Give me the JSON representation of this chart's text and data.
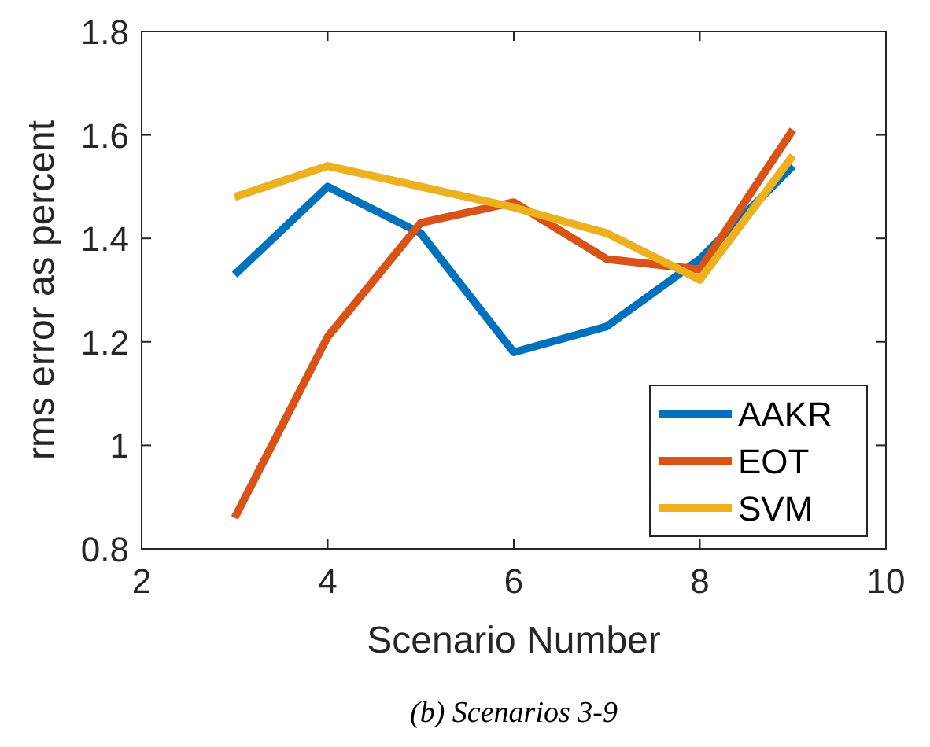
{
  "chart_data": {
    "type": "line",
    "xlabel": "Scenario Number",
    "ylabel": "rms error as percent",
    "annotations": [
      "(b) Scenarios 3-9"
    ],
    "x": [
      3,
      4,
      5,
      6,
      7,
      8,
      9
    ],
    "series": [
      {
        "name": "AAKR",
        "color": "#0072bd",
        "values": [
          1.33,
          1.5,
          1.41,
          1.18,
          1.23,
          1.36,
          1.54
        ]
      },
      {
        "name": "EOT",
        "color": "#d95319",
        "values": [
          0.86,
          1.21,
          1.43,
          1.47,
          1.36,
          1.34,
          1.61
        ]
      },
      {
        "name": "SVM",
        "color": "#edb120",
        "values": [
          1.48,
          1.54,
          1.5,
          1.46,
          1.41,
          1.32,
          1.56
        ]
      }
    ],
    "xlim": [
      2,
      10
    ],
    "xticks": [
      2,
      4,
      6,
      8,
      10
    ],
    "ylim": [
      0.8,
      1.8
    ],
    "yticks": [
      0.8,
      1,
      1.2,
      1.4,
      1.6,
      1.8
    ],
    "grid": false,
    "legend": "bottom right",
    "line_style": "solid",
    "marker": "none"
  }
}
